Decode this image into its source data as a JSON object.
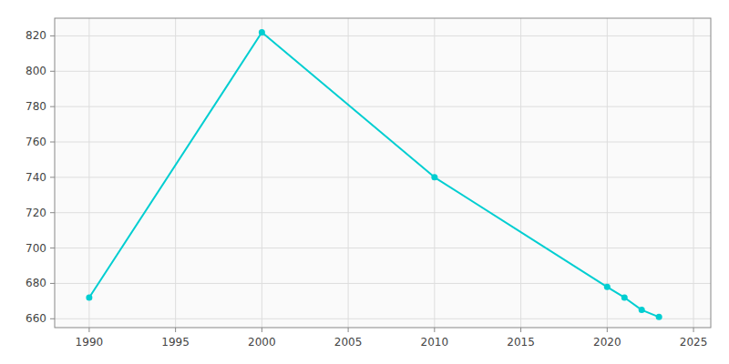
{
  "chart_data": {
    "type": "line",
    "x": [
      1990,
      2000,
      2010,
      2020,
      2021,
      2022,
      2023
    ],
    "values": [
      672,
      822,
      740,
      678,
      672,
      665,
      661
    ],
    "color": "#00CED1",
    "marker": "circle",
    "xlim": [
      1988,
      2026
    ],
    "ylim": [
      655,
      830
    ],
    "xticks": [
      1990,
      1995,
      2000,
      2005,
      2010,
      2015,
      2020,
      2025
    ],
    "yticks": [
      660,
      680,
      700,
      720,
      740,
      760,
      780,
      800,
      820
    ],
    "grid": true
  }
}
